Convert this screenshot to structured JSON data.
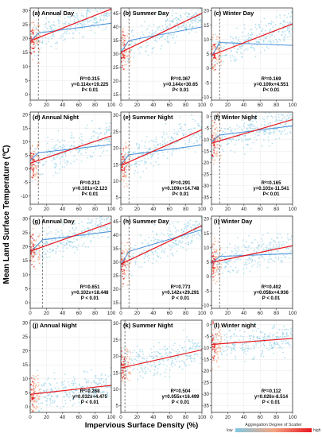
{
  "figure": {
    "ylabel": "Mean Land Surface Temperature (℃)",
    "xlabel": "Impervious Surface Density (%)",
    "colorbar": {
      "label": "Aggregation Degree of Scatter",
      "low": "low",
      "high": "high",
      "colors": [
        "#7ec8e3",
        "#f4a582",
        "#e8171e"
      ]
    },
    "colors": {
      "fit_line": "#e8171e",
      "trend_line": "#4a90d9",
      "scatter_low": "#7ec8e3",
      "scatter_high": "#e8171e",
      "threshold_line": "#444444"
    }
  },
  "chart_data": [
    {
      "type": "scatter",
      "title": "(a) Annual Day",
      "xlim": [
        0,
        100
      ],
      "ylim": [
        -2,
        31
      ],
      "yticks": [
        0,
        5,
        10,
        15,
        20,
        25,
        30
      ],
      "xticks": [
        0,
        20,
        40,
        60,
        80,
        100
      ],
      "fit": {
        "intercept": 19.225,
        "slope": 0.114
      },
      "threshold_x": 10,
      "trend": [
        [
          0,
          19
        ],
        [
          10,
          22
        ],
        [
          100,
          25.5
        ]
      ],
      "stats": [
        "R²=0.315",
        "y=0.114x+19.225",
        "P< 0.01"
      ]
    },
    {
      "type": "scatter",
      "title": "(b) Summer Day",
      "xlim": [
        0,
        100
      ],
      "ylim": [
        13,
        47
      ],
      "yticks": [
        15,
        20,
        25,
        30,
        35,
        40,
        45
      ],
      "xticks": [
        0,
        20,
        40,
        60,
        80,
        100
      ],
      "fit": {
        "intercept": 30.65,
        "slope": 0.144
      },
      "threshold_x": 10,
      "trend": [
        [
          0,
          30.5
        ],
        [
          10,
          35
        ],
        [
          100,
          40
        ]
      ],
      "stats": [
        "R²=0.367",
        "y=0.144x+30.65",
        "P< 0.01"
      ]
    },
    {
      "type": "scatter",
      "title": "(c) Winter Day",
      "xlim": [
        0,
        100
      ],
      "ylim": [
        -11,
        21
      ],
      "yticks": [
        -10,
        -5,
        0,
        5,
        10,
        15,
        20
      ],
      "xticks": [
        0,
        20,
        40,
        60,
        80,
        100
      ],
      "fit": {
        "intercept": 4.551,
        "slope": 0.109
      },
      "threshold_x": 10,
      "trend": [
        [
          0,
          4
        ],
        [
          10,
          9
        ],
        [
          100,
          8
        ]
      ],
      "stats": [
        "R²=0.169",
        "y=0.109x+4.551",
        "P< 0.01"
      ]
    },
    {
      "type": "scatter",
      "title": "(d) Annual Night",
      "xlim": [
        0,
        100
      ],
      "ylim": [
        -13,
        21
      ],
      "yticks": [
        -10,
        -5,
        0,
        5,
        10,
        15,
        20
      ],
      "xticks": [
        0,
        20,
        40,
        60,
        80,
        100
      ],
      "fit": {
        "intercept": 2.123,
        "slope": 0.101
      },
      "threshold_x": 10,
      "trend": [
        [
          0,
          3
        ],
        [
          10,
          6
        ],
        [
          100,
          9
        ]
      ],
      "stats": [
        "R²=0.212",
        "y=0.101x+2.123",
        "P< 0.01"
      ]
    },
    {
      "type": "scatter",
      "title": "(e) Summer Night",
      "xlim": [
        0,
        100
      ],
      "ylim": [
        3,
        31
      ],
      "yticks": [
        5,
        10,
        15,
        20,
        25,
        30
      ],
      "xticks": [
        0,
        20,
        40,
        60,
        80,
        100
      ],
      "fit": {
        "intercept": 14.748,
        "slope": 0.109
      },
      "threshold_x": 10,
      "trend": [
        [
          0,
          15
        ],
        [
          10,
          18
        ],
        [
          100,
          21
        ]
      ],
      "stats": [
        "R²=0.291",
        "y=0.109x+14.748",
        "P< 0.01"
      ]
    },
    {
      "type": "scatter",
      "title": "(f) Winter Night",
      "xlim": [
        0,
        100
      ],
      "ylim": [
        -38,
        2
      ],
      "yticks": [
        -35,
        -30,
        -25,
        -20,
        -15,
        -10,
        -5,
        0
      ],
      "xticks": [
        0,
        20,
        40,
        60,
        80,
        100
      ],
      "fit": {
        "intercept": -11.541,
        "slope": 0.103
      },
      "threshold_x": 10,
      "trend": [
        [
          0,
          -11
        ],
        [
          10,
          -8
        ],
        [
          100,
          -4
        ]
      ],
      "stats": [
        "R²=0.165",
        "y=0.103x-11.541",
        "P< 0.01"
      ]
    },
    {
      "type": "scatter",
      "title": "(g) Annual Day",
      "xlim": [
        0,
        100
      ],
      "ylim": [
        -2,
        31
      ],
      "yticks": [
        0,
        5,
        10,
        15,
        20,
        25,
        30
      ],
      "xticks": [
        0,
        20,
        40,
        60,
        80,
        100
      ],
      "fit": {
        "intercept": 18.448,
        "slope": 0.102
      },
      "threshold_x": 15,
      "trend": [
        [
          0,
          18
        ],
        [
          15,
          22.5
        ],
        [
          100,
          25.5
        ]
      ],
      "stats": [
        "R²=0.651",
        "y=0.102x+18.448",
        "P < 0.01"
      ]
    },
    {
      "type": "scatter",
      "title": "(h) Summer Day",
      "xlim": [
        0,
        100
      ],
      "ylim": [
        13,
        47
      ],
      "yticks": [
        15,
        20,
        25,
        30,
        35,
        40,
        45
      ],
      "xticks": [
        0,
        20,
        40,
        60,
        80,
        100
      ],
      "fit": {
        "intercept": 29.291,
        "slope": 0.142
      },
      "threshold_x": 10,
      "trend": [
        [
          0,
          29
        ],
        [
          10,
          34
        ],
        [
          100,
          42
        ]
      ],
      "stats": [
        "R²=0.773",
        "y=0.142x+29.291",
        "P < 0.01"
      ]
    },
    {
      "type": "scatter",
      "title": "(i) Winter Day",
      "xlim": [
        0,
        100
      ],
      "ylim": [
        -11,
        21
      ],
      "yticks": [
        -10,
        -5,
        0,
        5,
        10,
        15,
        20
      ],
      "xticks": [
        0,
        20,
        40,
        60,
        80,
        100
      ],
      "fit": {
        "intercept": 4.936,
        "slope": 0.058
      },
      "threshold_x": 10,
      "trend": [
        [
          0,
          4.5
        ],
        [
          10,
          7
        ],
        [
          100,
          8
        ]
      ],
      "stats": [
        "R²=0.402",
        "y=0.058x+4.936",
        "P < 0.01"
      ]
    },
    {
      "type": "scatter",
      "title": "(j) Annual Night",
      "xlim": [
        0,
        100
      ],
      "ylim": [
        -2,
        31
      ],
      "yticks": [
        0,
        5,
        10,
        15,
        20,
        25,
        30
      ],
      "xticks": [
        0,
        20,
        40,
        60,
        80,
        100
      ],
      "fit": {
        "intercept": 4.475,
        "slope": 0.032
      },
      "threshold_x": null,
      "trend": null,
      "stats": [
        "R²=0.268",
        "y=0.032x+4.475",
        "P < 0.01"
      ]
    },
    {
      "type": "scatter",
      "title": "(k) Summer Night",
      "xlim": [
        0,
        100
      ],
      "ylim": [
        3,
        31
      ],
      "yticks": [
        5,
        10,
        15,
        20,
        25,
        30
      ],
      "xticks": [
        0,
        20,
        40,
        60,
        80,
        100
      ],
      "fit": {
        "intercept": 16.499,
        "slope": 0.055
      },
      "threshold_x": 5,
      "trend": null,
      "stats": [
        "R²=0.504",
        "y=0.055x+16.499",
        "P < 0.01"
      ]
    },
    {
      "type": "scatter",
      "title": "(l) Winter night",
      "xlim": [
        0,
        100
      ],
      "ylim": [
        -38,
        2
      ],
      "yticks": [
        -35,
        -30,
        -25,
        -20,
        -15,
        -10,
        -5,
        0
      ],
      "xticks": [
        0,
        20,
        40,
        60,
        80,
        100
      ],
      "fit": {
        "intercept": -8.514,
        "slope": 0.026
      },
      "threshold_x": null,
      "trend": null,
      "stats": [
        "R²=0.112",
        "y=0.026x-8.514",
        "P < 0.01"
      ]
    }
  ]
}
